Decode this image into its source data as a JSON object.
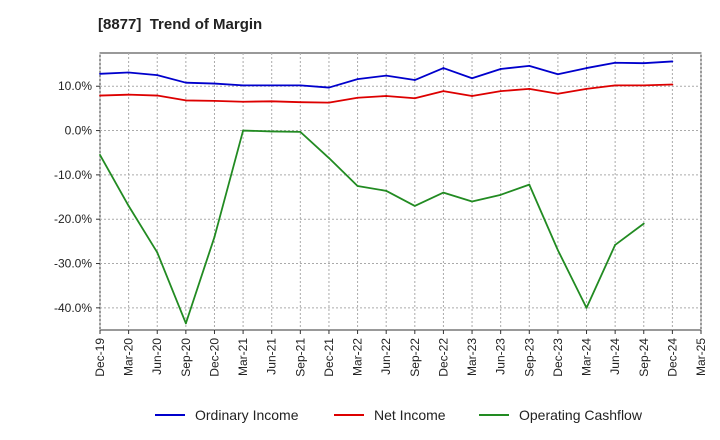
{
  "chart_data": {
    "type": "line",
    "title": "[8877]  Trend of Margin",
    "xlabel": "",
    "ylabel": "",
    "ylim": [
      -45,
      17.5
    ],
    "yticks": [
      10,
      0,
      -10,
      -20,
      -30,
      -40
    ],
    "ytick_labels": [
      "10.0%",
      "0.0%",
      "-10.0%",
      "-20.0%",
      "-30.0%",
      "-40.0%"
    ],
    "grid": true,
    "legend_position": "bottom",
    "categories": [
      "Dec-19",
      "Mar-20",
      "Jun-20",
      "Sep-20",
      "Dec-20",
      "Mar-21",
      "Jun-21",
      "Sep-21",
      "Dec-21",
      "Mar-22",
      "Jun-22",
      "Sep-22",
      "Dec-22",
      "Mar-23",
      "Jun-23",
      "Sep-23",
      "Dec-23",
      "Mar-24",
      "Jun-24",
      "Sep-24",
      "Dec-24",
      "Mar-25"
    ],
    "series": [
      {
        "name": "Ordinary Income",
        "color": "#0000cc",
        "values": [
          12.8,
          13.1,
          12.5,
          10.8,
          10.6,
          10.2,
          10.2,
          10.2,
          9.7,
          11.6,
          12.4,
          11.4,
          14.1,
          11.8,
          13.9,
          14.6,
          12.7,
          14.1,
          15.3,
          15.2,
          15.6,
          null
        ]
      },
      {
        "name": "Net Income",
        "color": "#dd0000",
        "values": [
          7.9,
          8.1,
          7.9,
          6.8,
          6.7,
          6.5,
          6.6,
          6.4,
          6.3,
          7.4,
          7.8,
          7.3,
          8.9,
          7.8,
          8.9,
          9.4,
          8.3,
          9.4,
          10.2,
          10.2,
          10.4,
          null
        ]
      },
      {
        "name": "Operating Cashflow",
        "color": "#228b22",
        "values": [
          -5.5,
          -17.0,
          -27.5,
          -43.5,
          -24.0,
          0.0,
          -0.2,
          -0.3,
          -6.2,
          -12.5,
          -13.6,
          -17.0,
          -14.0,
          -16.0,
          -14.5,
          -12.2,
          -27.0,
          -40.0,
          -25.8,
          -21.0,
          null,
          null
        ]
      }
    ]
  }
}
